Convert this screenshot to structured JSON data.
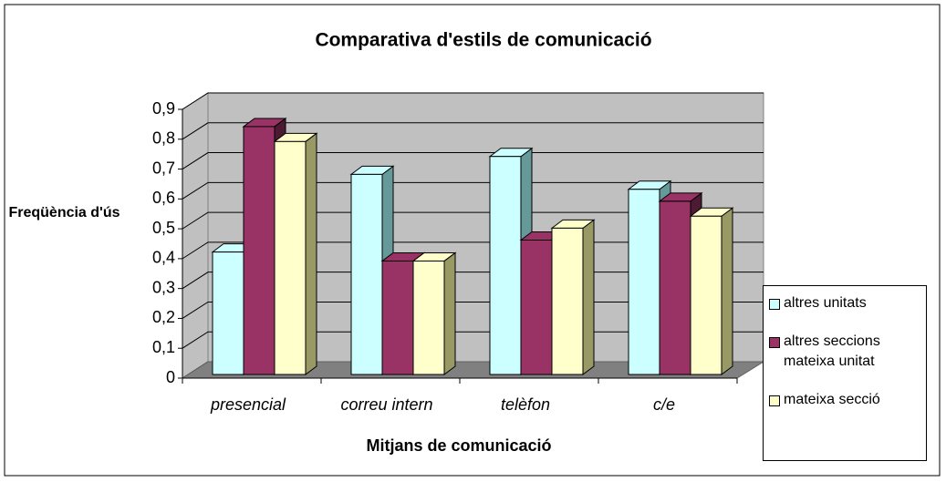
{
  "chart_data": {
    "type": "bar3d",
    "title": "Comparativa d'estils de comunicació",
    "x_label": "Mitjans de comunicació",
    "y_label": "Freqüència d'ús",
    "categories": [
      "presencial",
      "correu intern",
      "telèfon",
      "c/e"
    ],
    "series": [
      {
        "name": "altres unitats",
        "color": "#ccffff",
        "side": "#669999",
        "values": [
          0.41,
          0.67,
          0.73,
          0.62
        ]
      },
      {
        "name": "altres seccions mateixa unitat",
        "color": "#993366",
        "side": "#4d1a33",
        "values": [
          0.83,
          0.38,
          0.45,
          0.58
        ]
      },
      {
        "name": "mateixa secció",
        "color": "#ffffcc",
        "side": "#999966",
        "values": [
          0.78,
          0.38,
          0.49,
          0.53
        ]
      }
    ],
    "ylim": [
      0,
      0.9
    ],
    "yticks": [
      0,
      {
        "value": 0.1,
        "label": "0,1"
      },
      {
        "value": 0.2,
        "label": "0,2"
      },
      {
        "value": 0.3,
        "label": "0,3"
      },
      {
        "value": 0.4,
        "label": "0,4"
      },
      {
        "value": 0.5,
        "label": "0,5"
      },
      {
        "value": 0.6,
        "label": "0,6"
      },
      {
        "value": 0.7,
        "label": "0,7"
      },
      {
        "value": 0.8,
        "label": "0,8"
      },
      {
        "value": 0.9,
        "label": "0,9"
      }
    ],
    "grid": true,
    "legend": "right"
  }
}
